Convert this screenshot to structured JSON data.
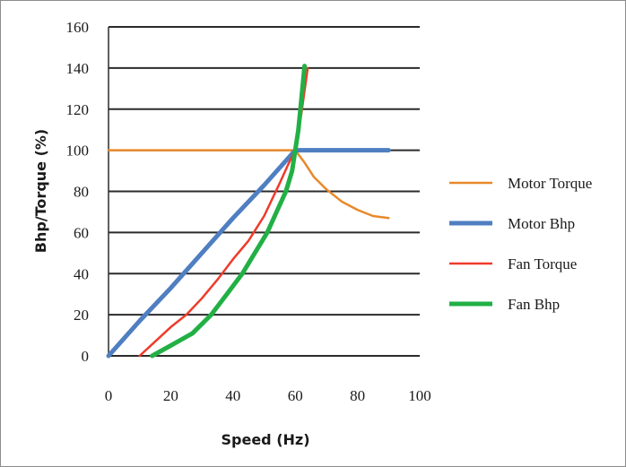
{
  "chart_data": {
    "type": "line",
    "xlabel": "Speed (Hz)",
    "ylabel": "Bhp/Torque (%)",
    "xlim": [
      0,
      100
    ],
    "ylim": [
      0,
      160
    ],
    "x_ticks": [
      "0",
      "20",
      "40",
      "60",
      "80",
      "100"
    ],
    "y_ticks": [
      "0",
      "20",
      "40",
      "60",
      "80",
      "100",
      "120",
      "140",
      "160"
    ],
    "grid": "horizontal",
    "legend_position": "right",
    "series": [
      {
        "name": "Motor Torque",
        "color": "#e8892a",
        "x": [
          0,
          10,
          20,
          30,
          40,
          50,
          60,
          63,
          66,
          70,
          75,
          80,
          85,
          90
        ],
        "y": [
          100,
          100,
          100,
          100,
          100,
          100,
          100,
          94,
          87,
          81,
          75,
          71,
          68,
          67
        ]
      },
      {
        "name": "Motor Bhp",
        "color": "#4f7fc1",
        "x": [
          0,
          10,
          20,
          30,
          40,
          50,
          60,
          70,
          80,
          90
        ],
        "y": [
          0,
          17,
          33,
          50,
          67,
          83,
          100,
          100,
          100,
          100
        ]
      },
      {
        "name": "Fan Torque",
        "color": "#ee3b2b",
        "x": [
          10,
          15,
          20,
          25,
          30,
          35,
          40,
          45,
          50,
          55,
          58,
          60,
          62,
          64
        ],
        "y": [
          0,
          7,
          14,
          20,
          28,
          37,
          47,
          56,
          68,
          84,
          94,
          100,
          118,
          140
        ]
      },
      {
        "name": "Fan Bhp",
        "color": "#22b045",
        "x": [
          14,
          20,
          27,
          33,
          38,
          43,
          47,
          51,
          54,
          57,
          59,
          60,
          61,
          62,
          63
        ],
        "y": [
          0,
          5,
          11,
          20,
          30,
          40,
          50,
          60,
          70,
          80,
          90,
          100,
          110,
          125,
          141
        ]
      }
    ]
  }
}
